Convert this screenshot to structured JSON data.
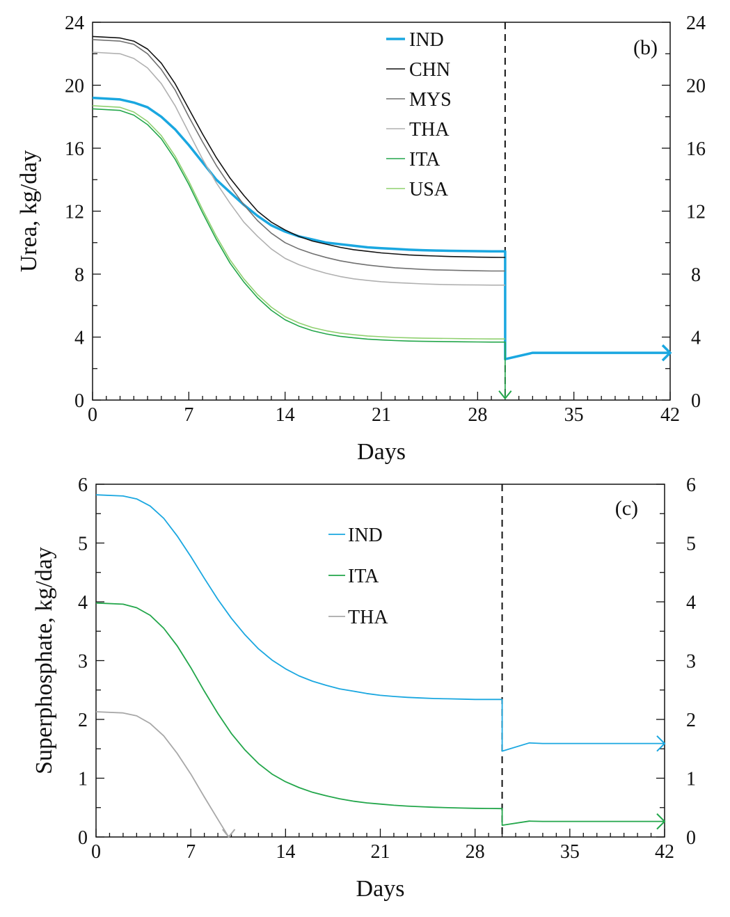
{
  "chart_data": [
    {
      "type": "line",
      "panel_label": "(b)",
      "xlabel": "Days",
      "ylabel": "Urea, kg/day",
      "xlim": [
        0,
        42
      ],
      "ylim": [
        0,
        24
      ],
      "x_ticks": [
        "0",
        "7",
        "14",
        "21",
        "28",
        "35",
        "42"
      ],
      "y_ticks": [
        "0",
        "4",
        "8",
        "12",
        "16",
        "20",
        "24"
      ],
      "y_ticks_right": [
        "0",
        "4",
        "8",
        "12",
        "16",
        "20",
        "24"
      ],
      "marker_day": 30,
      "legend": "top-center",
      "series": [
        {
          "name": "IND",
          "color": "#1aa7e0",
          "width": 3.5,
          "x": [
            0,
            2,
            3,
            4,
            5,
            6,
            7,
            8,
            9,
            10,
            11,
            12,
            13,
            14,
            15,
            16,
            17,
            18,
            19,
            20,
            21,
            22,
            23,
            24,
            25,
            26,
            27,
            28,
            29,
            30,
            30,
            32,
            33,
            42
          ],
          "y": [
            19.2,
            19.1,
            18.9,
            18.6,
            18.0,
            17.2,
            16.2,
            15.1,
            14.0,
            13.2,
            12.4,
            11.7,
            11.1,
            10.7,
            10.4,
            10.2,
            10.0,
            9.9,
            9.8,
            9.7,
            9.65,
            9.6,
            9.55,
            9.52,
            9.5,
            9.48,
            9.47,
            9.46,
            9.45,
            9.45,
            2.6,
            3.0,
            3.0,
            3.0
          ],
          "end_arrow": "right"
        },
        {
          "name": "CHN",
          "color": "#111111",
          "width": 1.6,
          "x": [
            0,
            2,
            3,
            4,
            5,
            6,
            7,
            8,
            9,
            10,
            11,
            12,
            13,
            14,
            15,
            16,
            17,
            18,
            19,
            20,
            21,
            22,
            23,
            24,
            25,
            26,
            27,
            28,
            29,
            30
          ],
          "y": [
            23.1,
            23.0,
            22.8,
            22.3,
            21.4,
            20.1,
            18.5,
            16.9,
            15.4,
            14.1,
            13.0,
            12.0,
            11.3,
            10.8,
            10.4,
            10.1,
            9.9,
            9.7,
            9.55,
            9.45,
            9.35,
            9.28,
            9.22,
            9.18,
            9.15,
            9.12,
            9.1,
            9.08,
            9.07,
            9.06
          ]
        },
        {
          "name": "MYS",
          "color": "#707070",
          "width": 1.6,
          "x": [
            0,
            2,
            3,
            4,
            5,
            6,
            7,
            8,
            9,
            10,
            11,
            12,
            13,
            14,
            15,
            16,
            17,
            18,
            19,
            20,
            21,
            22,
            23,
            24,
            25,
            26,
            27,
            28,
            29,
            30
          ],
          "y": [
            22.9,
            22.8,
            22.6,
            22.0,
            21.0,
            19.7,
            18.0,
            16.4,
            14.9,
            13.6,
            12.4,
            11.4,
            10.6,
            10.0,
            9.6,
            9.3,
            9.05,
            8.85,
            8.7,
            8.58,
            8.48,
            8.4,
            8.35,
            8.3,
            8.27,
            8.25,
            8.23,
            8.21,
            8.2,
            8.2
          ]
        },
        {
          "name": "THA",
          "color": "#b0b0b0",
          "width": 1.6,
          "x": [
            0,
            2,
            3,
            4,
            5,
            6,
            7,
            8,
            9,
            10,
            11,
            12,
            13,
            14,
            15,
            16,
            17,
            18,
            19,
            20,
            21,
            22,
            23,
            24,
            25,
            26,
            27,
            28,
            29,
            30
          ],
          "y": [
            22.1,
            22.0,
            21.7,
            21.1,
            20.1,
            18.7,
            17.0,
            15.3,
            13.8,
            12.5,
            11.3,
            10.4,
            9.6,
            9.0,
            8.6,
            8.3,
            8.05,
            7.85,
            7.7,
            7.6,
            7.52,
            7.46,
            7.42,
            7.38,
            7.35,
            7.33,
            7.32,
            7.31,
            7.3,
            7.3
          ]
        },
        {
          "name": "ITA",
          "color": "#22a64a",
          "width": 1.6,
          "x": [
            0,
            2,
            3,
            4,
            5,
            6,
            7,
            8,
            9,
            10,
            11,
            12,
            13,
            14,
            15,
            16,
            17,
            18,
            19,
            20,
            21,
            22,
            23,
            24,
            25,
            26,
            27,
            28,
            29,
            30,
            30
          ],
          "y": [
            18.5,
            18.4,
            18.1,
            17.5,
            16.6,
            15.3,
            13.7,
            11.9,
            10.2,
            8.7,
            7.5,
            6.5,
            5.7,
            5.1,
            4.7,
            4.4,
            4.2,
            4.05,
            3.95,
            3.87,
            3.82,
            3.78,
            3.75,
            3.73,
            3.72,
            3.71,
            3.7,
            3.69,
            3.68,
            3.68,
            0.1
          ],
          "end_arrow": "down"
        },
        {
          "name": "USA",
          "color": "#8fd06f",
          "width": 1.6,
          "x": [
            0,
            2,
            3,
            4,
            5,
            6,
            7,
            8,
            9,
            10,
            11,
            12,
            13,
            14,
            15,
            16,
            17,
            18,
            19,
            20,
            21,
            22,
            23,
            24,
            25,
            26,
            27,
            28,
            29,
            30
          ],
          "y": [
            18.7,
            18.6,
            18.3,
            17.7,
            16.8,
            15.5,
            13.9,
            12.1,
            10.4,
            8.9,
            7.7,
            6.7,
            5.9,
            5.3,
            4.9,
            4.6,
            4.4,
            4.25,
            4.15,
            4.07,
            4.02,
            3.98,
            3.95,
            3.93,
            3.92,
            3.91,
            3.9,
            3.89,
            3.88,
            3.88
          ]
        }
      ]
    },
    {
      "type": "line",
      "panel_label": "(c)",
      "xlabel": "Days",
      "ylabel": "Superphosphate, kg/day",
      "xlim": [
        0,
        42
      ],
      "ylim": [
        0,
        6
      ],
      "x_ticks": [
        "0",
        "7",
        "14",
        "21",
        "28",
        "35",
        "42"
      ],
      "y_ticks": [
        "0",
        "1",
        "2",
        "3",
        "4",
        "5",
        "6"
      ],
      "y_ticks_right": [
        "0",
        "1",
        "2",
        "3",
        "4",
        "5",
        "6"
      ],
      "marker_day": 30,
      "legend": "top-center",
      "series": [
        {
          "name": "IND",
          "color": "#1aa7e0",
          "width": 1.8,
          "x": [
            0,
            2,
            3,
            4,
            5,
            6,
            7,
            8,
            9,
            10,
            11,
            12,
            13,
            14,
            15,
            16,
            17,
            18,
            19,
            20,
            21,
            22,
            23,
            24,
            25,
            26,
            27,
            28,
            29,
            30,
            30,
            32,
            33,
            42
          ],
          "y": [
            5.82,
            5.8,
            5.75,
            5.63,
            5.42,
            5.12,
            4.77,
            4.4,
            4.04,
            3.72,
            3.44,
            3.2,
            3.01,
            2.86,
            2.74,
            2.65,
            2.58,
            2.52,
            2.48,
            2.44,
            2.41,
            2.39,
            2.375,
            2.365,
            2.355,
            2.35,
            2.345,
            2.34,
            2.34,
            2.34,
            1.46,
            1.6,
            1.59,
            1.59
          ],
          "end_arrow": "right"
        },
        {
          "name": "ITA",
          "color": "#22a64a",
          "width": 1.8,
          "x": [
            0,
            2,
            3,
            4,
            5,
            6,
            7,
            8,
            9,
            10,
            11,
            12,
            13,
            14,
            15,
            16,
            17,
            18,
            19,
            20,
            21,
            22,
            23,
            24,
            25,
            26,
            27,
            28,
            29,
            30,
            30,
            32,
            33,
            42
          ],
          "y": [
            3.98,
            3.96,
            3.9,
            3.77,
            3.55,
            3.25,
            2.88,
            2.48,
            2.1,
            1.76,
            1.48,
            1.25,
            1.07,
            0.94,
            0.84,
            0.76,
            0.7,
            0.65,
            0.61,
            0.58,
            0.56,
            0.54,
            0.525,
            0.515,
            0.505,
            0.498,
            0.492,
            0.488,
            0.485,
            0.483,
            0.2,
            0.27,
            0.265,
            0.265
          ],
          "end_arrow": "right"
        },
        {
          "name": "THA",
          "color": "#a8a8a8",
          "width": 1.8,
          "x": [
            0,
            2,
            3,
            4,
            5,
            6,
            7,
            8,
            9,
            9.8
          ],
          "y": [
            2.13,
            2.11,
            2.06,
            1.93,
            1.72,
            1.42,
            1.07,
            0.68,
            0.3,
            0.0
          ],
          "end_arrow": "down"
        }
      ]
    }
  ]
}
